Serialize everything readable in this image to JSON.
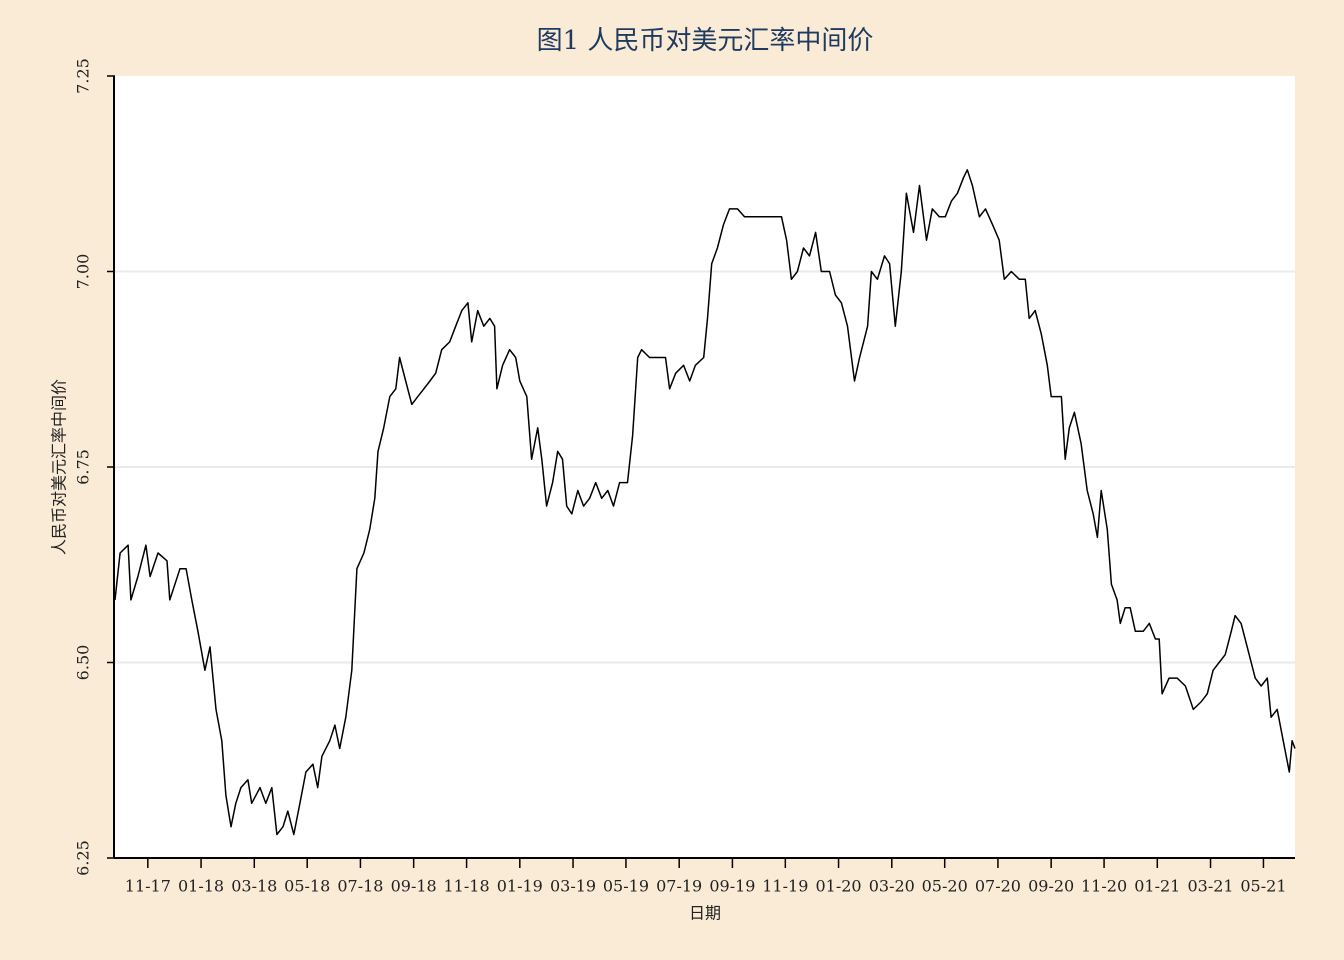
{
  "chart_data": {
    "type": "line",
    "title": "图1 人民币对美元汇率中间价",
    "xlabel": "日期",
    "ylabel": "人民币对美元汇率中间价",
    "color": "#000000",
    "grid": true,
    "xlim": [
      2017.73,
      2021.432
    ],
    "ylim": [
      6.25,
      7.25
    ],
    "yticks": [
      {
        "value": 6.25,
        "label": "6.25"
      },
      {
        "value": 6.5,
        "label": "6.50"
      },
      6.75,
      {
        "value": 7,
        "label": "7.00"
      },
      7.25
    ],
    "xticks": [
      {
        "value": 2017.833,
        "label": "11-17"
      },
      {
        "value": 2018.0,
        "label": "01-18"
      },
      {
        "value": 2018.167,
        "label": "03-18"
      },
      {
        "value": 2018.333,
        "label": "05-18"
      },
      {
        "value": 2018.5,
        "label": "07-18"
      },
      {
        "value": 2018.667,
        "label": "09-18"
      },
      {
        "value": 2018.833,
        "label": "11-18"
      },
      {
        "value": 2019.0,
        "label": "01-19"
      },
      {
        "value": 2019.167,
        "label": "03-19"
      },
      {
        "value": 2019.333,
        "label": "05-19"
      },
      {
        "value": 2019.5,
        "label": "07-19"
      },
      {
        "value": 2019.667,
        "label": "09-19"
      },
      {
        "value": 2019.833,
        "label": "11-19"
      },
      {
        "value": 2020.0,
        "label": "01-20"
      },
      {
        "value": 2020.167,
        "label": "03-20"
      },
      {
        "value": 2020.333,
        "label": "05-20"
      },
      {
        "value": 2020.5,
        "label": "07-20"
      },
      {
        "value": 2020.667,
        "label": "09-20"
      },
      {
        "value": 2020.833,
        "label": "11-20"
      },
      {
        "value": 2021.0,
        "label": "01-21"
      },
      {
        "value": 2021.167,
        "label": "03-21"
      },
      {
        "value": 2021.333,
        "label": "05-21"
      }
    ],
    "x": [
      2017.73,
      2017.746,
      2017.771,
      2017.78,
      2017.802,
      2017.827,
      2017.84,
      2017.865,
      2017.893,
      2017.902,
      2017.934,
      2017.953,
      2017.971,
      2017.99,
      2018.012,
      2018.028,
      2018.047,
      2018.065,
      2018.078,
      2018.094,
      2018.109,
      2018.125,
      2018.147,
      2018.159,
      2018.185,
      2018.203,
      2018.222,
      2018.238,
      2018.257,
      2018.272,
      2018.291,
      2018.31,
      2018.329,
      2018.351,
      2018.366,
      2018.379,
      2018.404,
      2018.42,
      2018.435,
      2018.454,
      2018.473,
      2018.489,
      2018.511,
      2018.529,
      2018.545,
      2018.555,
      2018.573,
      2018.592,
      2018.611,
      2018.623,
      2018.642,
      2018.661,
      2018.68,
      2018.699,
      2018.718,
      2018.736,
      2018.755,
      2018.78,
      2018.799,
      2018.818,
      2018.837,
      2018.849,
      2018.868,
      2018.887,
      2018.906,
      2018.921,
      2018.928,
      2018.946,
      2018.968,
      2018.987,
      2019.0,
      2019.022,
      2019.037,
      2019.056,
      2019.069,
      2019.084,
      2019.103,
      2019.119,
      2019.134,
      2019.147,
      2019.163,
      2019.182,
      2019.2,
      2019.219,
      2019.238,
      2019.257,
      2019.276,
      2019.294,
      2019.313,
      2019.338,
      2019.354,
      2019.37,
      2019.382,
      2019.407,
      2019.426,
      2019.457,
      2019.47,
      2019.489,
      2019.514,
      2019.533,
      2019.551,
      2019.577,
      2019.589,
      2019.602,
      2019.62,
      2019.639,
      2019.658,
      2019.683,
      2019.705,
      2019.752,
      2019.799,
      2019.821,
      2019.837,
      2019.852,
      2019.871,
      2019.89,
      2019.909,
      2019.928,
      2019.946,
      2019.972,
      2019.99,
      2020.009,
      2020.028,
      2020.05,
      2020.066,
      2020.091,
      2020.103,
      2020.122,
      2020.144,
      2020.16,
      2020.178,
      2020.197,
      2020.213,
      2020.235,
      2020.254,
      2020.276,
      2020.294,
      2020.316,
      2020.335,
      2020.354,
      2020.373,
      2020.392,
      2020.404,
      2020.42,
      2020.442,
      2020.461,
      2020.483,
      2020.504,
      2020.52,
      2020.542,
      2020.567,
      2020.586,
      2020.598,
      2020.617,
      2020.636,
      2020.655,
      2020.667,
      2020.699,
      2020.711,
      2020.724,
      2020.74,
      2020.761,
      2020.78,
      2020.799,
      2020.812,
      2020.824,
      2020.843,
      2020.856,
      2020.874,
      2020.884,
      2020.899,
      2020.915,
      2020.931,
      2020.956,
      2020.975,
      2020.994,
      2021.006,
      2021.015,
      2021.037,
      2021.062,
      2021.088,
      2021.113,
      2021.138,
      2021.157,
      2021.175,
      2021.194,
      2021.213,
      2021.232,
      2021.244,
      2021.263,
      2021.282,
      2021.307,
      2021.326,
      2021.345,
      2021.357,
      2021.376,
      2021.395,
      2021.414,
      2021.423,
      2021.432
    ],
    "values": [
      6.58,
      6.64,
      6.65,
      6.58,
      6.61,
      6.65,
      6.61,
      6.64,
      6.63,
      6.58,
      6.62,
      6.62,
      6.58,
      6.54,
      6.49,
      6.52,
      6.44,
      6.4,
      6.33,
      6.29,
      6.32,
      6.34,
      6.35,
      6.32,
      6.34,
      6.32,
      6.34,
      6.28,
      6.29,
      6.31,
      6.28,
      6.32,
      6.36,
      6.37,
      6.34,
      6.38,
      6.4,
      6.42,
      6.39,
      6.43,
      6.49,
      6.62,
      6.64,
      6.67,
      6.71,
      6.77,
      6.8,
      6.84,
      6.85,
      6.89,
      6.86,
      6.83,
      6.84,
      6.85,
      6.86,
      6.87,
      6.9,
      6.91,
      6.93,
      6.95,
      6.96,
      6.91,
      6.95,
      6.93,
      6.94,
      6.93,
      6.85,
      6.88,
      6.9,
      6.89,
      6.86,
      6.84,
      6.76,
      6.8,
      6.76,
      6.7,
      6.73,
      6.77,
      6.76,
      6.7,
      6.69,
      6.72,
      6.7,
      6.71,
      6.73,
      6.71,
      6.72,
      6.7,
      6.73,
      6.73,
      6.79,
      6.89,
      6.9,
      6.89,
      6.89,
      6.89,
      6.85,
      6.87,
      6.88,
      6.86,
      6.88,
      6.89,
      6.94,
      7.01,
      7.03,
      7.06,
      7.08,
      7.08,
      7.07,
      7.07,
      7.07,
      7.07,
      7.04,
      6.99,
      7.0,
      7.03,
      7.02,
      7.05,
      7.0,
      7.0,
      6.97,
      6.96,
      6.93,
      6.86,
      6.89,
      6.93,
      7.0,
      6.99,
      7.02,
      7.01,
      6.93,
      7.0,
      7.1,
      7.05,
      7.11,
      7.04,
      7.08,
      7.07,
      7.07,
      7.09,
      7.1,
      7.12,
      7.13,
      7.11,
      7.07,
      7.08,
      7.06,
      7.04,
      6.99,
      7.0,
      6.99,
      6.99,
      6.94,
      6.95,
      6.92,
      6.88,
      6.84,
      6.84,
      6.76,
      6.8,
      6.82,
      6.78,
      6.72,
      6.69,
      6.66,
      6.72,
      6.67,
      6.6,
      6.58,
      6.55,
      6.57,
      6.57,
      6.54,
      6.54,
      6.55,
      6.53,
      6.53,
      6.46,
      6.48,
      6.48,
      6.47,
      6.44,
      6.45,
      6.46,
      6.49,
      6.5,
      6.51,
      6.54,
      6.56,
      6.55,
      6.52,
      6.48,
      6.47,
      6.48,
      6.43,
      6.44,
      6.4,
      6.36,
      6.4,
      6.39
    ]
  }
}
